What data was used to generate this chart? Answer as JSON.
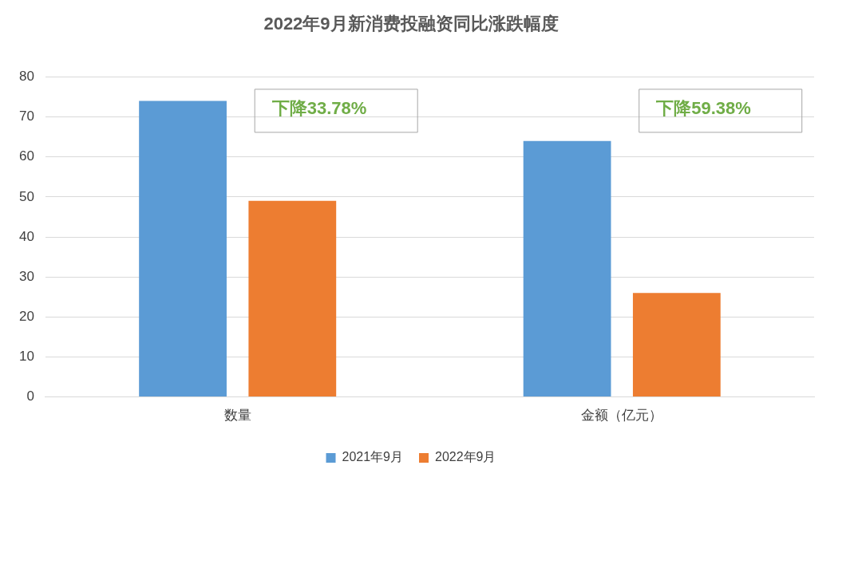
{
  "chart_data": {
    "type": "bar",
    "title": "2022年9月新消费投融资同比涨跌幅度",
    "categories": [
      "数量",
      "金额（亿元）"
    ],
    "series": [
      {
        "name": "2021年9月",
        "color": "#5b9bd5",
        "values": [
          74,
          64
        ]
      },
      {
        "name": "2022年9月",
        "color": "#ed7d31",
        "values": [
          49,
          26
        ]
      }
    ],
    "ylim": [
      0,
      80
    ],
    "yticks": [
      0,
      10,
      20,
      30,
      40,
      50,
      60,
      70,
      80
    ],
    "grid": "y",
    "legend": "bottom",
    "annotations": [
      "下降33.78%",
      "下降59.38%"
    ]
  }
}
